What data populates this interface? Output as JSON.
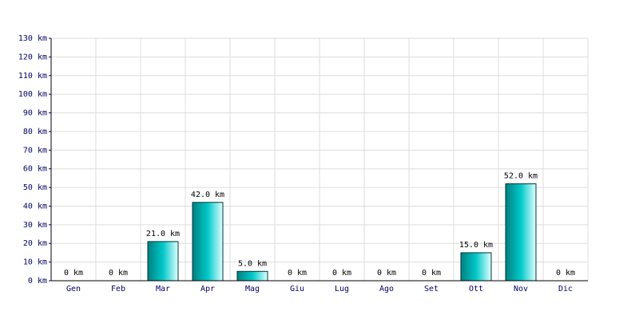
{
  "chart_data": {
    "type": "bar",
    "categories": [
      "Gen",
      "Feb",
      "Mar",
      "Apr",
      "Mag",
      "Giu",
      "Lug",
      "Ago",
      "Set",
      "Ott",
      "Nov",
      "Dic"
    ],
    "values": [
      0,
      0,
      21,
      42,
      5,
      0,
      0,
      0,
      0,
      15,
      52,
      0
    ],
    "value_labels": [
      "0 km",
      "0 km",
      "21.0 km",
      "42.0 km",
      "5.0 km",
      "0 km",
      "0 km",
      "0 km",
      "0 km",
      "15.0 km",
      "52.0 km",
      "0 km"
    ],
    "color": "#00c8c8",
    "ylim": [
      0,
      130
    ],
    "yticks": [
      {
        "value": 0,
        "label": "0 km"
      },
      {
        "value": 10,
        "label": "10 km"
      },
      {
        "value": 20,
        "label": "20 km"
      },
      {
        "value": 30,
        "label": "30 km"
      },
      {
        "value": 40,
        "label": "40 km"
      },
      {
        "value": 50,
        "label": "50 km"
      },
      {
        "value": 60,
        "label": "60 km"
      },
      {
        "value": 70,
        "label": "70 km"
      },
      {
        "value": 80,
        "label": "80 km"
      },
      {
        "value": 90,
        "label": "90 km"
      },
      {
        "value": 100,
        "label": "100 km"
      },
      {
        "value": 110,
        "label": "110 km"
      },
      {
        "value": 120,
        "label": "120 km"
      },
      {
        "value": 130,
        "label": "130 km"
      }
    ],
    "grid": true
  }
}
